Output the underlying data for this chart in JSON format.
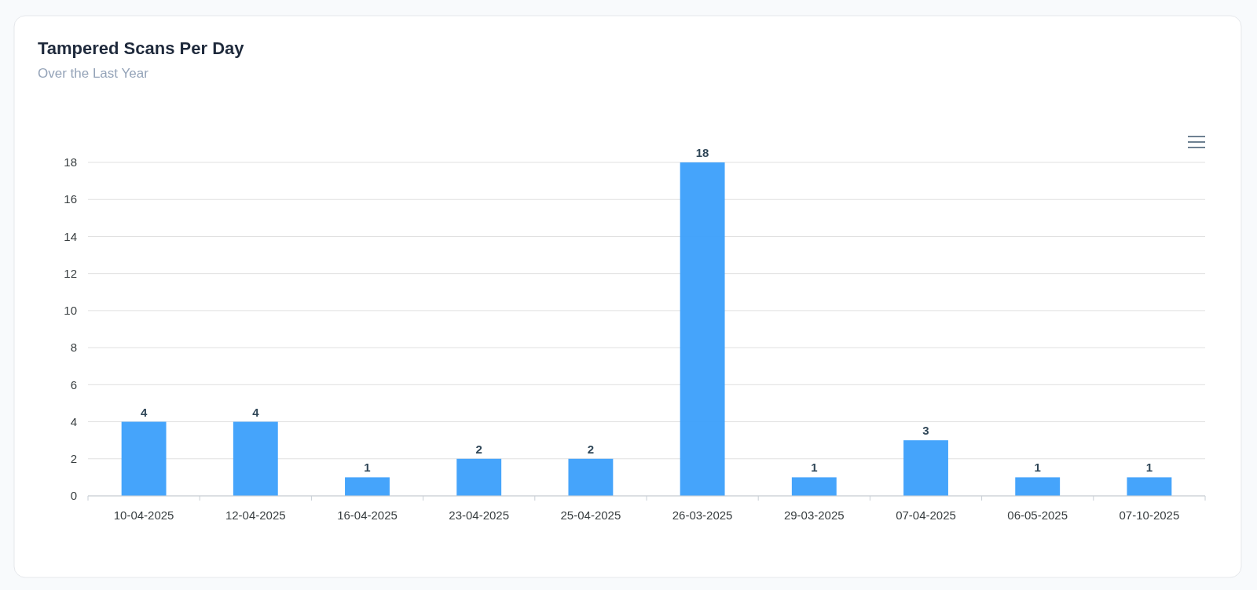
{
  "chart_data": {
    "type": "bar",
    "title": "Tampered Scans Per Day",
    "subtitle": "Over the Last Year",
    "categories": [
      "10-04-2025",
      "12-04-2025",
      "16-04-2025",
      "23-04-2025",
      "25-04-2025",
      "26-03-2025",
      "29-03-2025",
      "07-04-2025",
      "06-05-2025",
      "07-10-2025"
    ],
    "values": [
      4,
      4,
      1,
      2,
      2,
      18,
      1,
      3,
      1,
      1
    ],
    "color": "#3fa1fb",
    "ylim": [
      0,
      18
    ],
    "yticks": [
      0,
      2,
      4,
      6,
      8,
      10,
      12,
      14,
      16,
      18
    ],
    "grid": "y",
    "data_labels": true
  }
}
